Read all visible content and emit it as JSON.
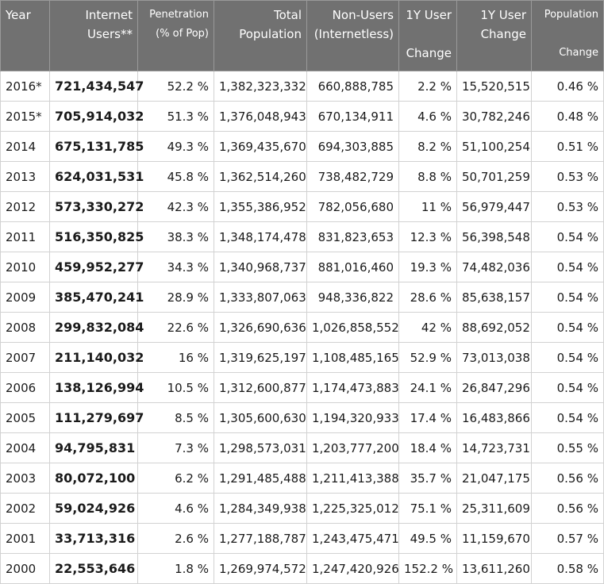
{
  "headers": [
    {
      "lines": [
        "Year"
      ]
    },
    {
      "lines": [
        "Internet",
        "Users**"
      ]
    },
    {
      "lines": [
        "Penetration",
        "(% of Pop)"
      ]
    },
    {
      "lines": [
        "Total",
        "Population"
      ]
    },
    {
      "lines": [
        "Non-Users",
        "(Internetless)"
      ]
    },
    {
      "lines": [
        "1Y User",
        "",
        "Change"
      ]
    },
    {
      "lines": [
        "1Y User",
        "Change"
      ]
    },
    {
      "lines": [
        "Population",
        "",
        "Change"
      ]
    }
  ],
  "rows": [
    [
      "2016*",
      "721,434,547",
      "52.2 %",
      "1,382,323,332",
      "660,888,785",
      "2.2 %",
      "15,520,515",
      "0.46 %"
    ],
    [
      "2015*",
      "705,914,032",
      "51.3 %",
      "1,376,048,943",
      "670,134,911",
      "4.6 %",
      "30,782,246",
      "0.48 %"
    ],
    [
      "2014",
      "675,131,785",
      "49.3 %",
      "1,369,435,670",
      "694,303,885",
      "8.2 %",
      "51,100,254",
      "0.51 %"
    ],
    [
      "2013",
      "624,031,531",
      "45.8 %",
      "1,362,514,260",
      "738,482,729",
      "8.8 %",
      "50,701,259",
      "0.53 %"
    ],
    [
      "2012",
      "573,330,272",
      "42.3 %",
      "1,355,386,952",
      "782,056,680",
      "11 %",
      "56,979,447",
      "0.53 %"
    ],
    [
      "2011",
      "516,350,825",
      "38.3 %",
      "1,348,174,478",
      "831,823,653",
      "12.3 %",
      "56,398,548",
      "0.54 %"
    ],
    [
      "2010",
      "459,952,277",
      "34.3 %",
      "1,340,968,737",
      "881,016,460",
      "19.3 %",
      "74,482,036",
      "0.54 %"
    ],
    [
      "2009",
      "385,470,241",
      "28.9 %",
      "1,333,807,063",
      "948,336,822",
      "28.6 %",
      "85,638,157",
      "0.54 %"
    ],
    [
      "2008",
      "299,832,084",
      "22.6 %",
      "1,326,690,636",
      "1,026,858,552",
      "42 %",
      "88,692,052",
      "0.54 %"
    ],
    [
      "2007",
      "211,140,032",
      "16 %",
      "1,319,625,197",
      "1,108,485,165",
      "52.9 %",
      "73,013,038",
      "0.54 %"
    ],
    [
      "2006",
      "138,126,994",
      "10.5 %",
      "1,312,600,877",
      "1,174,473,883",
      "24.1 %",
      "26,847,296",
      "0.54 %"
    ],
    [
      "2005",
      "111,279,697",
      "8.5 %",
      "1,305,600,630",
      "1,194,320,933",
      "17.4 %",
      "16,483,866",
      "0.54 %"
    ],
    [
      "2004",
      "94,795,831",
      "7.3 %",
      "1,298,573,031",
      "1,203,777,200",
      "18.4 %",
      "14,723,731",
      "0.55 %"
    ],
    [
      "2003",
      "80,072,100",
      "6.2 %",
      "1,291,485,488",
      "1,211,413,388",
      "35.7 %",
      "21,047,175",
      "0.56 %"
    ],
    [
      "2002",
      "59,024,926",
      "4.6 %",
      "1,284,349,938",
      "1,225,325,012",
      "75.1 %",
      "25,311,609",
      "0.56 %"
    ],
    [
      "2001",
      "33,713,316",
      "2.6 %",
      "1,277,188,787",
      "1,243,475,471",
      "49.5 %",
      "11,159,670",
      "0.57 %"
    ],
    [
      "2000",
      "22,553,646",
      "1.8 %",
      "1,269,974,572",
      "1,247,420,926",
      "152.2 %",
      "13,611,260",
      "0.58 %"
    ]
  ]
}
